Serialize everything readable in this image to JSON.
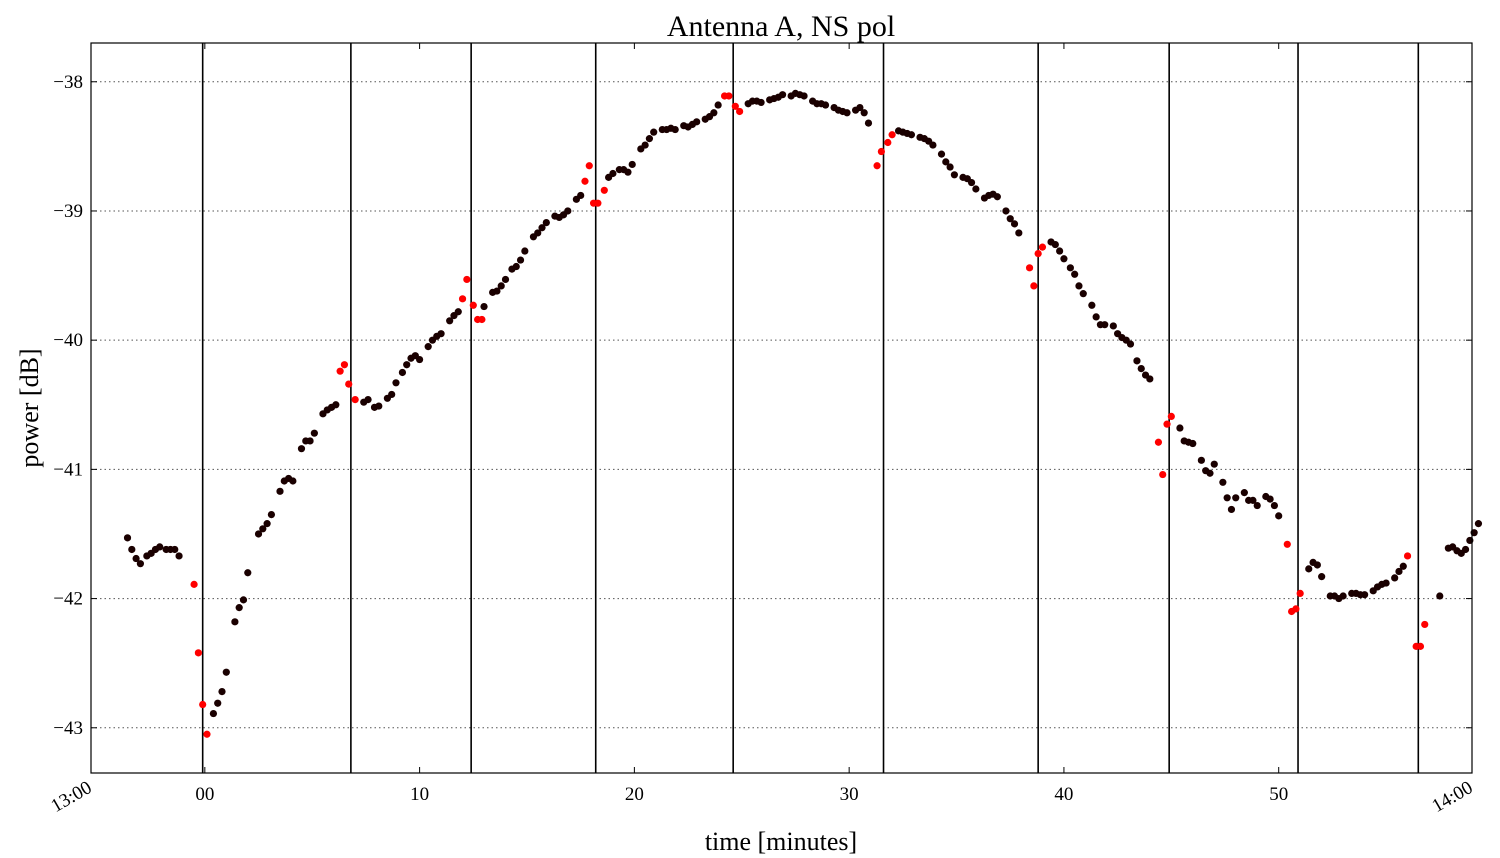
{
  "chart_data": {
    "type": "scatter",
    "title": "Antenna A, NS pol",
    "xlabel": "time [minutes]",
    "ylabel": "power [dB]",
    "x_unit": "minutes after 13:00",
    "xlim": [
      -5.3,
      59.0
    ],
    "ylim": [
      -43.35,
      -37.7
    ],
    "x_ticks": [
      {
        "value": -5.3,
        "label": "13:00",
        "rotated": true
      },
      {
        "value": 0,
        "label": "00"
      },
      {
        "value": 10,
        "label": "10"
      },
      {
        "value": 20,
        "label": "20"
      },
      {
        "value": 30,
        "label": "30"
      },
      {
        "value": 40,
        "label": "40"
      },
      {
        "value": 50,
        "label": "50"
      },
      {
        "value": 59.0,
        "label": "14:00",
        "rotated": true
      }
    ],
    "y_ticks": [
      {
        "value": -38,
        "label": "−38"
      },
      {
        "value": -39,
        "label": "−39"
      },
      {
        "value": -40,
        "label": "−40"
      },
      {
        "value": -41,
        "label": "−41"
      },
      {
        "value": -42,
        "label": "−42"
      },
      {
        "value": -43,
        "label": "−43"
      }
    ],
    "grid": {
      "horizontal": true,
      "vertical": false,
      "style": "dotted"
    },
    "vertical_markers": [
      -0.1,
      6.8,
      12.4,
      18.2,
      24.6,
      31.6,
      38.8,
      44.9,
      50.9,
      56.5
    ],
    "colors": {
      "normal": "#1a0000",
      "flagged": "#ff0000"
    },
    "series": [
      {
        "color": "#1a0000",
        "points": [
          [
            -3.6,
            -41.53
          ],
          [
            -3.4,
            -41.62
          ],
          [
            -3.2,
            -41.69
          ],
          [
            -3.0,
            -41.73
          ],
          [
            -2.7,
            -41.67
          ],
          [
            -2.5,
            -41.65
          ],
          [
            -2.3,
            -41.62
          ],
          [
            -2.1,
            -41.6
          ],
          [
            -1.8,
            -41.62
          ],
          [
            -1.6,
            -41.62
          ],
          [
            -1.4,
            -41.62
          ],
          [
            -1.2,
            -41.67
          ],
          [
            0.4,
            -42.89
          ],
          [
            0.6,
            -42.81
          ],
          [
            0.8,
            -42.72
          ],
          [
            1.0,
            -42.57
          ],
          [
            1.4,
            -42.18
          ],
          [
            1.6,
            -42.07
          ],
          [
            1.8,
            -42.01
          ],
          [
            2.0,
            -41.8
          ],
          [
            2.5,
            -41.5
          ],
          [
            2.7,
            -41.46
          ],
          [
            2.9,
            -41.42
          ],
          [
            3.1,
            -41.35
          ],
          [
            3.5,
            -41.17
          ],
          [
            3.7,
            -41.09
          ],
          [
            3.9,
            -41.07
          ],
          [
            4.1,
            -41.09
          ],
          [
            4.5,
            -40.84
          ],
          [
            4.7,
            -40.78
          ],
          [
            4.9,
            -40.78
          ],
          [
            5.1,
            -40.72
          ],
          [
            5.5,
            -40.57
          ],
          [
            5.7,
            -40.54
          ],
          [
            5.9,
            -40.52
          ],
          [
            6.1,
            -40.5
          ],
          [
            7.4,
            -40.48
          ],
          [
            7.6,
            -40.46
          ],
          [
            7.9,
            -40.52
          ],
          [
            8.1,
            -40.51
          ],
          [
            8.5,
            -40.45
          ],
          [
            8.7,
            -40.42
          ],
          [
            8.9,
            -40.33
          ],
          [
            9.2,
            -40.25
          ],
          [
            9.4,
            -40.19
          ],
          [
            9.6,
            -40.14
          ],
          [
            9.8,
            -40.12
          ],
          [
            10.0,
            -40.15
          ],
          [
            10.4,
            -40.05
          ],
          [
            10.6,
            -40.0
          ],
          [
            10.8,
            -39.97
          ],
          [
            11.0,
            -39.95
          ],
          [
            11.4,
            -39.85
          ],
          [
            11.6,
            -39.81
          ],
          [
            11.8,
            -39.78
          ],
          [
            13.0,
            -39.74
          ],
          [
            13.4,
            -39.63
          ],
          [
            13.6,
            -39.62
          ],
          [
            13.8,
            -39.58
          ],
          [
            14.0,
            -39.53
          ],
          [
            14.3,
            -39.45
          ],
          [
            14.5,
            -39.43
          ],
          [
            14.7,
            -39.38
          ],
          [
            14.9,
            -39.31
          ],
          [
            15.3,
            -39.2
          ],
          [
            15.5,
            -39.17
          ],
          [
            15.7,
            -39.13
          ],
          [
            15.9,
            -39.09
          ],
          [
            16.3,
            -39.04
          ],
          [
            16.5,
            -39.05
          ],
          [
            16.7,
            -39.03
          ],
          [
            16.9,
            -39.0
          ],
          [
            17.3,
            -38.91
          ],
          [
            17.5,
            -38.88
          ],
          [
            18.8,
            -38.74
          ],
          [
            19.0,
            -38.71
          ],
          [
            19.3,
            -38.68
          ],
          [
            19.5,
            -38.68
          ],
          [
            19.7,
            -38.7
          ],
          [
            19.9,
            -38.64
          ],
          [
            20.3,
            -38.52
          ],
          [
            20.5,
            -38.49
          ],
          [
            20.7,
            -38.44
          ],
          [
            20.9,
            -38.39
          ],
          [
            21.3,
            -38.37
          ],
          [
            21.5,
            -38.37
          ],
          [
            21.7,
            -38.36
          ],
          [
            21.9,
            -38.37
          ],
          [
            22.3,
            -38.34
          ],
          [
            22.5,
            -38.35
          ],
          [
            22.7,
            -38.33
          ],
          [
            22.9,
            -38.31
          ],
          [
            23.3,
            -38.29
          ],
          [
            23.5,
            -38.27
          ],
          [
            23.7,
            -38.24
          ],
          [
            23.9,
            -38.18
          ],
          [
            25.3,
            -38.17
          ],
          [
            25.5,
            -38.15
          ],
          [
            25.7,
            -38.15
          ],
          [
            25.9,
            -38.16
          ],
          [
            26.3,
            -38.14
          ],
          [
            26.5,
            -38.13
          ],
          [
            26.7,
            -38.12
          ],
          [
            26.9,
            -38.1
          ],
          [
            27.3,
            -38.11
          ],
          [
            27.5,
            -38.09
          ],
          [
            27.7,
            -38.1
          ],
          [
            27.9,
            -38.11
          ],
          [
            28.3,
            -38.15
          ],
          [
            28.5,
            -38.17
          ],
          [
            28.7,
            -38.17
          ],
          [
            28.9,
            -38.18
          ],
          [
            29.3,
            -38.2
          ],
          [
            29.5,
            -38.22
          ],
          [
            29.7,
            -38.23
          ],
          [
            29.9,
            -38.24
          ],
          [
            30.3,
            -38.22
          ],
          [
            30.5,
            -38.2
          ],
          [
            30.7,
            -38.24
          ],
          [
            30.9,
            -38.32
          ],
          [
            32.3,
            -38.38
          ],
          [
            32.5,
            -38.39
          ],
          [
            32.7,
            -38.4
          ],
          [
            32.9,
            -38.41
          ],
          [
            33.3,
            -38.43
          ],
          [
            33.5,
            -38.44
          ],
          [
            33.7,
            -38.46
          ],
          [
            33.9,
            -38.49
          ],
          [
            34.3,
            -38.56
          ],
          [
            34.5,
            -38.62
          ],
          [
            34.7,
            -38.66
          ],
          [
            34.9,
            -38.72
          ],
          [
            35.3,
            -38.74
          ],
          [
            35.5,
            -38.75
          ],
          [
            35.7,
            -38.78
          ],
          [
            35.9,
            -38.83
          ],
          [
            36.3,
            -38.9
          ],
          [
            36.5,
            -38.88
          ],
          [
            36.7,
            -38.87
          ],
          [
            36.9,
            -38.89
          ],
          [
            37.3,
            -39.0
          ],
          [
            37.5,
            -39.06
          ],
          [
            37.7,
            -39.1
          ],
          [
            37.9,
            -39.17
          ],
          [
            39.4,
            -39.24
          ],
          [
            39.6,
            -39.26
          ],
          [
            39.8,
            -39.31
          ],
          [
            40.0,
            -39.37
          ],
          [
            40.3,
            -39.44
          ],
          [
            40.5,
            -39.49
          ],
          [
            40.7,
            -39.58
          ],
          [
            40.9,
            -39.64
          ],
          [
            41.3,
            -39.73
          ],
          [
            41.5,
            -39.82
          ],
          [
            41.7,
            -39.88
          ],
          [
            41.9,
            -39.88
          ],
          [
            42.3,
            -39.89
          ],
          [
            42.5,
            -39.95
          ],
          [
            42.7,
            -39.98
          ],
          [
            42.9,
            -40.0
          ],
          [
            43.1,
            -40.03
          ],
          [
            43.4,
            -40.16
          ],
          [
            43.6,
            -40.22
          ],
          [
            43.8,
            -40.27
          ],
          [
            44.0,
            -40.3
          ],
          [
            45.4,
            -40.68
          ],
          [
            45.6,
            -40.78
          ],
          [
            45.8,
            -40.79
          ],
          [
            46.0,
            -40.8
          ],
          [
            46.4,
            -40.93
          ],
          [
            46.6,
            -41.01
          ],
          [
            46.8,
            -41.03
          ],
          [
            47.0,
            -40.96
          ],
          [
            47.4,
            -41.1
          ],
          [
            47.6,
            -41.22
          ],
          [
            47.8,
            -41.31
          ],
          [
            48.0,
            -41.22
          ],
          [
            48.4,
            -41.18
          ],
          [
            48.6,
            -41.24
          ],
          [
            48.8,
            -41.24
          ],
          [
            49.0,
            -41.28
          ],
          [
            49.4,
            -41.21
          ],
          [
            49.6,
            -41.23
          ],
          [
            49.8,
            -41.28
          ],
          [
            50.0,
            -41.36
          ],
          [
            51.4,
            -41.77
          ],
          [
            51.6,
            -41.72
          ],
          [
            51.8,
            -41.74
          ],
          [
            52.0,
            -41.83
          ],
          [
            52.4,
            -41.98
          ],
          [
            52.6,
            -41.98
          ],
          [
            52.8,
            -42.0
          ],
          [
            53.0,
            -41.98
          ],
          [
            53.4,
            -41.96
          ],
          [
            53.6,
            -41.96
          ],
          [
            53.8,
            -41.97
          ],
          [
            54.0,
            -41.97
          ],
          [
            54.4,
            -41.94
          ],
          [
            54.6,
            -41.91
          ],
          [
            54.8,
            -41.89
          ],
          [
            55.0,
            -41.88
          ],
          [
            55.4,
            -41.84
          ],
          [
            55.6,
            -41.79
          ],
          [
            55.8,
            -41.75
          ],
          [
            57.5,
            -41.98
          ],
          [
            57.9,
            -41.61
          ],
          [
            58.1,
            -41.6
          ],
          [
            58.3,
            -41.63
          ],
          [
            58.5,
            -41.65
          ],
          [
            58.7,
            -41.62
          ],
          [
            58.9,
            -41.55
          ],
          [
            59.1,
            -41.49
          ],
          [
            59.3,
            -41.42
          ]
        ]
      },
      {
        "color": "#ff0000",
        "points": [
          [
            -0.5,
            -41.89
          ],
          [
            -0.3,
            -42.42
          ],
          [
            -0.1,
            -42.82
          ],
          [
            0.1,
            -43.05
          ],
          [
            6.3,
            -40.24
          ],
          [
            6.5,
            -40.19
          ],
          [
            6.7,
            -40.34
          ],
          [
            7.0,
            -40.46
          ],
          [
            12.0,
            -39.68
          ],
          [
            12.2,
            -39.53
          ],
          [
            12.5,
            -39.73
          ],
          [
            12.7,
            -39.84
          ],
          [
            12.9,
            -39.84
          ],
          [
            17.7,
            -38.77
          ],
          [
            17.9,
            -38.65
          ],
          [
            18.1,
            -38.94
          ],
          [
            18.3,
            -38.94
          ],
          [
            18.6,
            -38.84
          ],
          [
            24.2,
            -38.11
          ],
          [
            24.4,
            -38.11
          ],
          [
            24.7,
            -38.19
          ],
          [
            24.9,
            -38.23
          ],
          [
            31.3,
            -38.65
          ],
          [
            31.5,
            -38.54
          ],
          [
            31.8,
            -38.47
          ],
          [
            32.0,
            -38.41
          ],
          [
            38.4,
            -39.44
          ],
          [
            38.6,
            -39.58
          ],
          [
            38.8,
            -39.33
          ],
          [
            39.0,
            -39.28
          ],
          [
            44.4,
            -40.79
          ],
          [
            44.6,
            -41.04
          ],
          [
            44.8,
            -40.65
          ],
          [
            45.0,
            -40.59
          ],
          [
            50.4,
            -41.58
          ],
          [
            50.6,
            -42.1
          ],
          [
            50.8,
            -42.08
          ],
          [
            51.0,
            -41.96
          ],
          [
            56.0,
            -41.67
          ],
          [
            56.4,
            -42.37
          ],
          [
            56.6,
            -42.37
          ],
          [
            56.8,
            -42.2
          ]
        ]
      }
    ]
  }
}
